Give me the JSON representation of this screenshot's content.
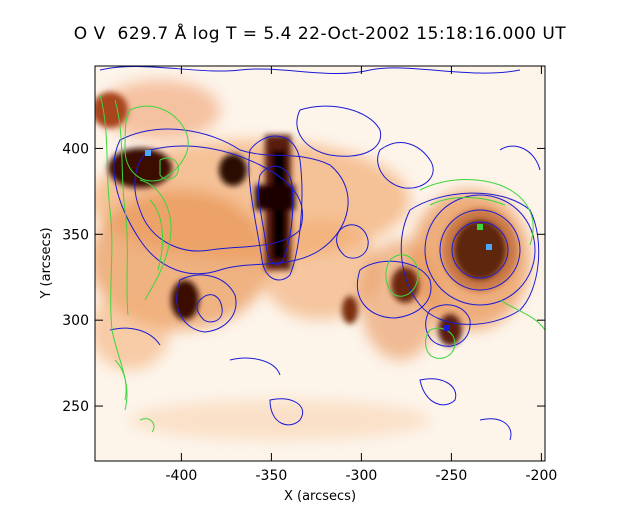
{
  "title": "O V  629.7 Å log T = 5.4 22-Oct-2002 15:18:16.000 UT",
  "chart_data": {
    "type": "heatmap",
    "xlabel": "X (arcsecs)",
    "ylabel": "Y (arcsecs)",
    "xlim": [
      -448,
      -198
    ],
    "ylim": [
      218,
      448
    ],
    "x_ticks": [
      -400,
      -350,
      -300,
      -250,
      -200
    ],
    "x_tick_labels": [
      "-400",
      "-350",
      "-300",
      "-250",
      "-200"
    ],
    "y_ticks": [
      250,
      300,
      350,
      400
    ],
    "y_tick_labels": [
      "250",
      "300",
      "350",
      "400"
    ],
    "colormap": [
      "#ffffff",
      "#fbe3cc",
      "#f3b07a",
      "#dd7a3a",
      "#a8451b",
      "#5a1e08",
      "#000000"
    ],
    "contour_colors": {
      "blue": "#1b1bd6",
      "green": "#3ed63e"
    },
    "bright_features": [
      {
        "x": -345,
        "y": 355,
        "intensity": 1.0
      },
      {
        "x": -375,
        "y": 378,
        "intensity": 0.9
      },
      {
        "x": -420,
        "y": 380,
        "intensity": 0.85
      },
      {
        "x": -235,
        "y": 335,
        "intensity": 1.0
      },
      {
        "x": -277,
        "y": 310,
        "intensity": 0.6
      },
      {
        "x": -400,
        "y": 300,
        "intensity": 0.7
      },
      {
        "x": -247,
        "y": 290,
        "intensity": 0.65
      },
      {
        "x": -432,
        "y": 400,
        "intensity": 0.6
      }
    ]
  }
}
